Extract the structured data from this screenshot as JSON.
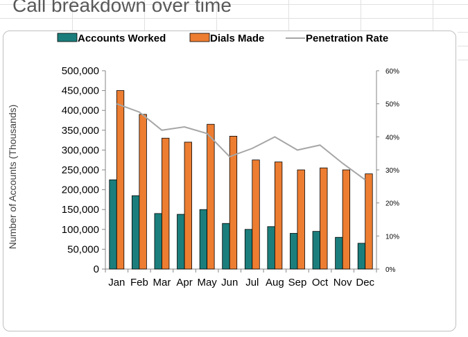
{
  "window": {
    "title_fragment": "Call breakdown over time"
  },
  "chart_data": {
    "type": "bar",
    "title": "Call breakdown over time",
    "categories": [
      "Jan",
      "Feb",
      "Mar",
      "Apr",
      "May",
      "Jun",
      "Jul",
      "Aug",
      "Sep",
      "Oct",
      "Nov",
      "Dec"
    ],
    "series": [
      {
        "name": "Accounts Worked",
        "kind": "bar",
        "axis": "left",
        "color": "#1b7e7c",
        "values": [
          225000,
          185000,
          140000,
          138000,
          150000,
          115000,
          100000,
          107000,
          90000,
          95000,
          80000,
          65000
        ]
      },
      {
        "name": "Dials Made",
        "kind": "bar",
        "axis": "left",
        "color": "#ed7d31",
        "values": [
          450000,
          390000,
          330000,
          320000,
          365000,
          335000,
          275000,
          270000,
          250000,
          255000,
          250000,
          240000
        ]
      },
      {
        "name": "Penetration Rate",
        "kind": "line",
        "axis": "right",
        "color": "#a6a6a6",
        "values": [
          0.5,
          0.475,
          0.42,
          0.43,
          0.41,
          0.34,
          0.365,
          0.4,
          0.36,
          0.375,
          0.32,
          0.27
        ]
      }
    ],
    "ylabel": "Number of Accounts (Thousands)",
    "xlabel": "",
    "ylim": [
      0,
      500000
    ],
    "y_ticks": [
      "0",
      "50,000",
      "100,000",
      "150,000",
      "200,000",
      "250,000",
      "300,000",
      "350,000",
      "400,000",
      "450,000",
      "500,000"
    ],
    "y2lim": [
      0,
      0.6
    ],
    "y2_ticks": [
      "0%",
      "10%",
      "20%",
      "30%",
      "40%",
      "50%",
      "60%"
    ],
    "legend_position": "top",
    "grid": false
  }
}
